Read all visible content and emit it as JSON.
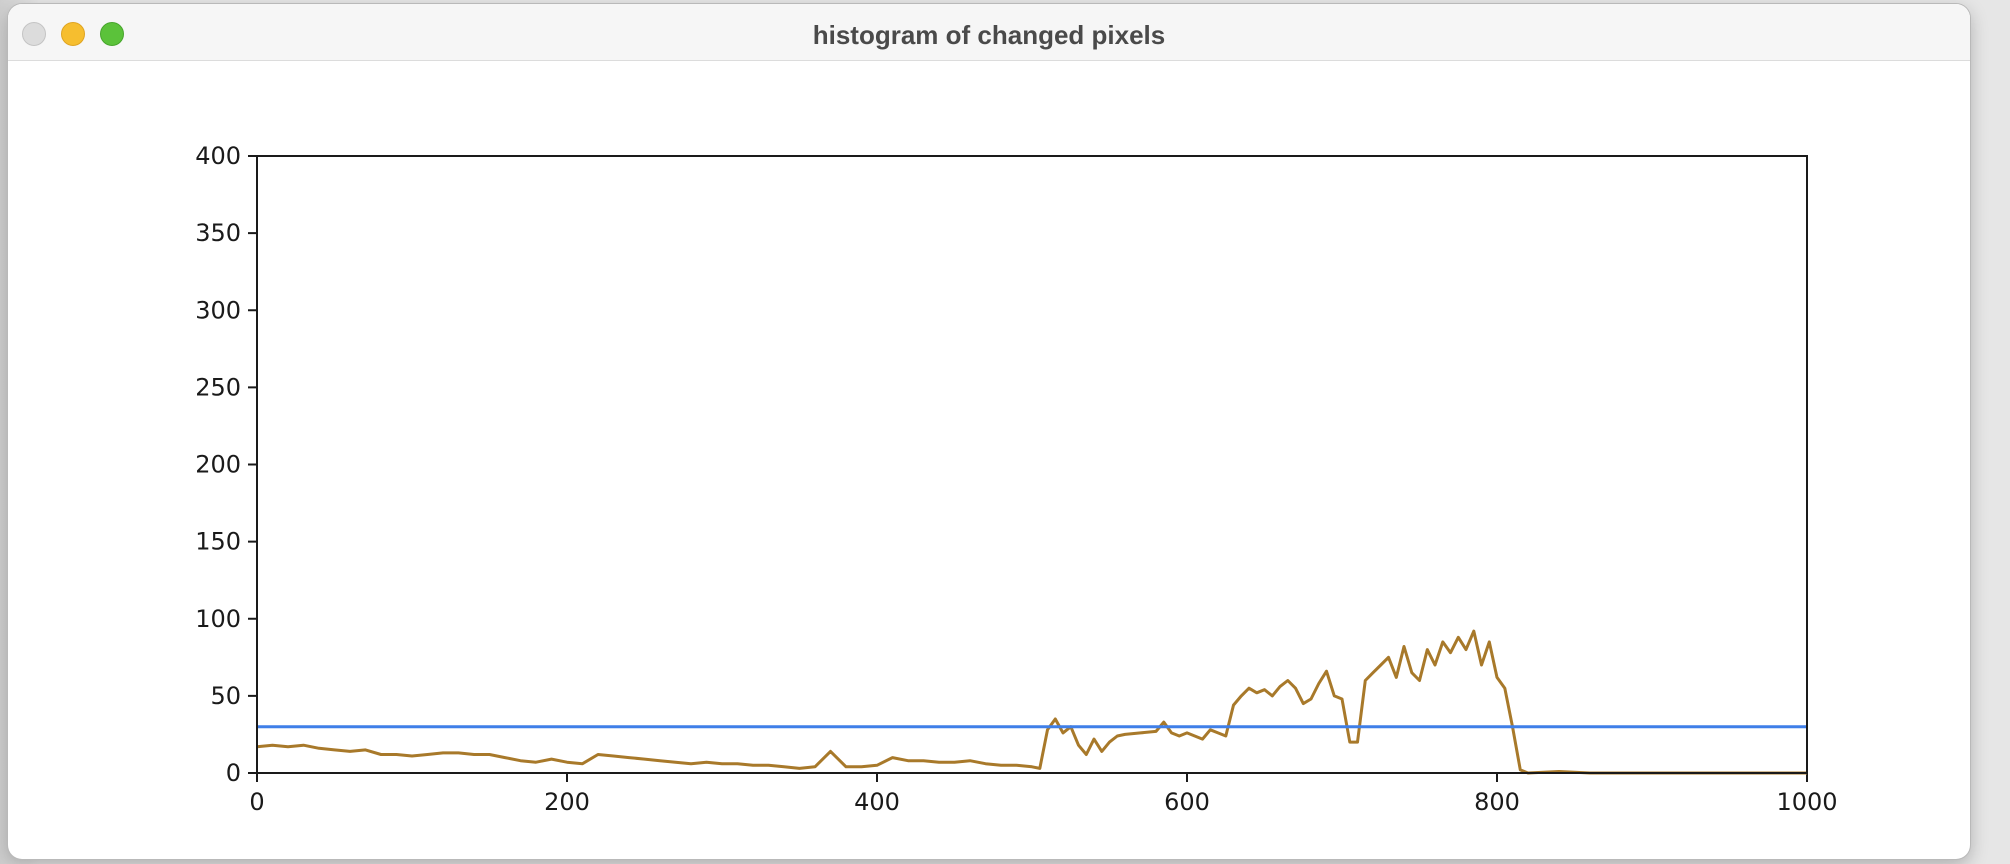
{
  "window": {
    "title": "histogram of changed pixels",
    "buttons": {
      "close": "close-button",
      "minimize": "minimize-button",
      "zoom": "zoom-button"
    }
  },
  "chart_data": {
    "type": "line",
    "title": "",
    "xlabel": "",
    "ylabel": "",
    "xlim": [
      0,
      1000
    ],
    "ylim": [
      0,
      400
    ],
    "grid": false,
    "x_ticks": [
      "0",
      "200",
      "400",
      "600",
      "800",
      "1000"
    ],
    "y_ticks": [
      "0",
      "50",
      "100",
      "150",
      "200",
      "250",
      "300",
      "350",
      "400"
    ],
    "series": [
      {
        "color": "#a8792a",
        "x": [
          0,
          10,
          20,
          30,
          40,
          50,
          60,
          70,
          80,
          90,
          100,
          110,
          120,
          130,
          140,
          150,
          160,
          170,
          180,
          190,
          200,
          210,
          220,
          230,
          240,
          250,
          260,
          270,
          280,
          290,
          300,
          310,
          320,
          330,
          340,
          350,
          360,
          370,
          380,
          390,
          400,
          410,
          420,
          430,
          440,
          450,
          460,
          470,
          480,
          490,
          500,
          505,
          510,
          515,
          520,
          525,
          530,
          535,
          540,
          545,
          550,
          555,
          560,
          570,
          580,
          585,
          590,
          595,
          600,
          610,
          615,
          620,
          625,
          630,
          635,
          640,
          645,
          650,
          655,
          660,
          665,
          670,
          675,
          680,
          685,
          690,
          695,
          700,
          705,
          710,
          715,
          720,
          725,
          730,
          735,
          740,
          745,
          750,
          755,
          760,
          765,
          770,
          775,
          780,
          785,
          790,
          795,
          800,
          805,
          810,
          815,
          820,
          840,
          860,
          900,
          950,
          1000
        ],
        "y": [
          17,
          18,
          17,
          18,
          16,
          15,
          14,
          15,
          12,
          12,
          11,
          12,
          13,
          13,
          12,
          12,
          10,
          8,
          7,
          9,
          7,
          6,
          12,
          11,
          10,
          9,
          8,
          7,
          6,
          7,
          6,
          6,
          5,
          5,
          4,
          3,
          4,
          14,
          4,
          4,
          5,
          10,
          8,
          8,
          7,
          7,
          8,
          6,
          5,
          5,
          4,
          3,
          28,
          35,
          26,
          30,
          18,
          12,
          22,
          14,
          20,
          24,
          25,
          26,
          27,
          33,
          26,
          24,
          26,
          22,
          28,
          26,
          24,
          44,
          50,
          55,
          52,
          54,
          50,
          56,
          60,
          55,
          45,
          48,
          58,
          66,
          50,
          48,
          20,
          20,
          60,
          65,
          70,
          75,
          62,
          82,
          65,
          60,
          80,
          70,
          85,
          78,
          88,
          80,
          92,
          70,
          85,
          62,
          55,
          30,
          2,
          0,
          1,
          0,
          0,
          0,
          0
        ]
      },
      {
        "color": "#3f7fe8",
        "x": [
          0,
          1000
        ],
        "y": [
          30,
          30
        ]
      }
    ]
  }
}
